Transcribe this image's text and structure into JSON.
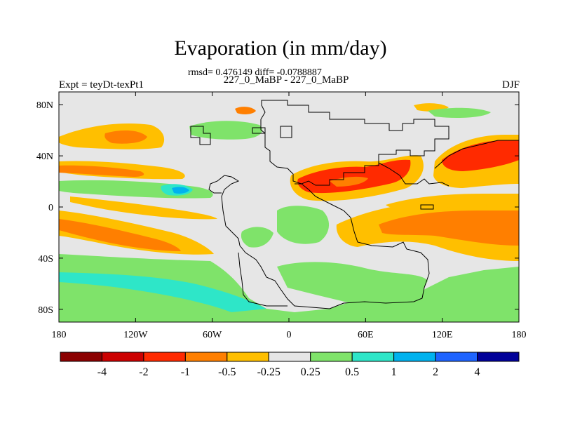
{
  "title": "Evaporation (in mm/day)",
  "stats": "rmsd= 0.476149 diff= -0.0788887",
  "subtitle": "227_0_MaBP - 227_0_MaBP",
  "left_label": "Expt = teyDt-texPt1",
  "right_label": "DJF",
  "map": {
    "lon_ticks": [
      "180",
      "120W",
      "60W",
      "0",
      "60E",
      "120E",
      "180"
    ],
    "lat_ticks": [
      "80N",
      "40N",
      "0",
      "40S",
      "80S"
    ],
    "background_color": "#e6e6e6"
  },
  "colorbar": {
    "labels": [
      "-4",
      "-2",
      "-1",
      "-0.5",
      "-0.25",
      "0.25",
      "0.5",
      "1",
      "2",
      "4"
    ],
    "colors": [
      "#8b0000",
      "#cc0000",
      "#ff2a00",
      "#ff7f00",
      "#ffbf00",
      "#e6e6e6",
      "#7fe36a",
      "#2ee6c8",
      "#00b2ee",
      "#1e64ff",
      "#000099"
    ]
  }
}
